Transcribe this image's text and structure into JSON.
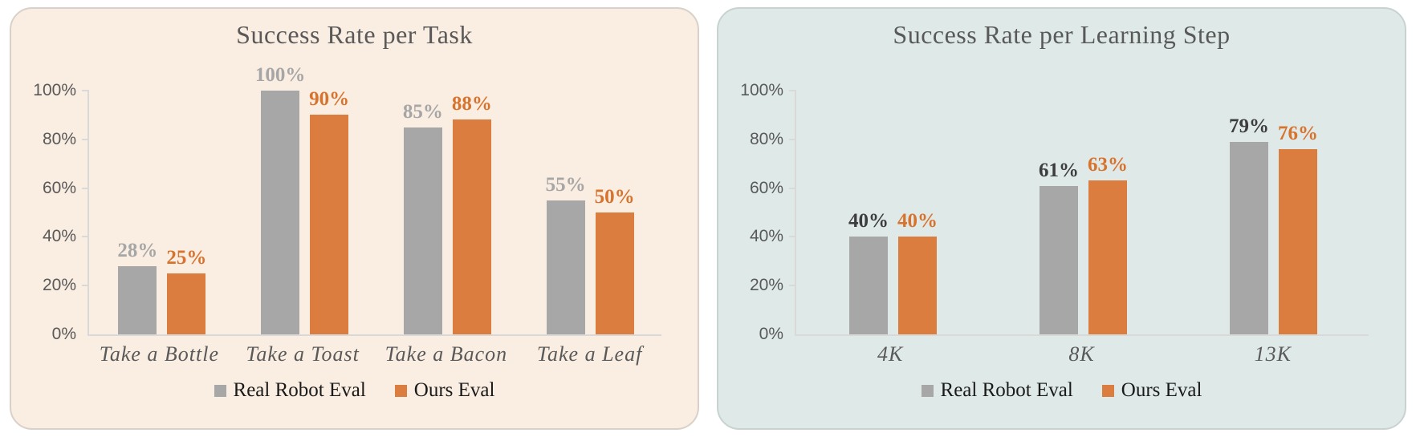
{
  "figure": {
    "background": "#FFFFFF"
  },
  "chart_data": [
    {
      "type": "bar",
      "title": "Success Rate per Task",
      "categories": [
        "Take a Bottle",
        "Take a Toast",
        "Take a Bacon",
        "Take a Leaf"
      ],
      "series": [
        {
          "name": "Real Robot Eval",
          "values": [
            28,
            100,
            85,
            55
          ],
          "labels": [
            "28%",
            "100%",
            "85%",
            "55%"
          ],
          "color": "#A7A7A7",
          "label_color": "#A6A6A6"
        },
        {
          "name": "Ours Eval",
          "values": [
            25,
            90,
            88,
            50
          ],
          "labels": [
            "25%",
            "90%",
            "88%",
            "50%"
          ],
          "color": "#DC7D40",
          "label_color": "#D8732D"
        }
      ],
      "xlabel": "",
      "ylabel": "",
      "ylim": [
        0,
        100
      ],
      "ytick_values": [
        0,
        20,
        40,
        60,
        80,
        100
      ],
      "ytick_labels": [
        "0%",
        "20%",
        "40%",
        "60%",
        "80%",
        "100%"
      ],
      "grid": false,
      "legend_position": "bottom",
      "panel_background": "#FAEDE2",
      "panel_border_color": "#D9D1C9",
      "title_color": "#595959",
      "axis_color": "#D9D9D9",
      "tick_label_color": "#595959",
      "category_label_color": "#595959"
    },
    {
      "type": "bar",
      "title": "Success Rate per Learning Step",
      "categories": [
        "4K",
        "8K",
        "13K"
      ],
      "series": [
        {
          "name": "Real Robot Eval",
          "values": [
            40,
            61,
            79
          ],
          "labels": [
            "40%",
            "61%",
            "79%"
          ],
          "color": "#A7A7A7",
          "label_color": "#3D3D3D"
        },
        {
          "name": "Ours Eval",
          "values": [
            40,
            63,
            76
          ],
          "labels": [
            "40%",
            "63%",
            "76%"
          ],
          "color": "#DC7D40",
          "label_color": "#D8732D"
        }
      ],
      "xlabel": "",
      "ylabel": "",
      "ylim": [
        0,
        100
      ],
      "ytick_values": [
        0,
        20,
        40,
        60,
        80,
        100
      ],
      "ytick_labels": [
        "0%",
        "20%",
        "40%",
        "60%",
        "80%",
        "100%"
      ],
      "grid": false,
      "legend_position": "bottom",
      "panel_background": "#DFE9E8",
      "panel_border_color": "#C8D2D1",
      "title_color": "#595959",
      "axis_color": "#D9D9D9",
      "tick_label_color": "#595959",
      "category_label_color": "#595959"
    }
  ]
}
